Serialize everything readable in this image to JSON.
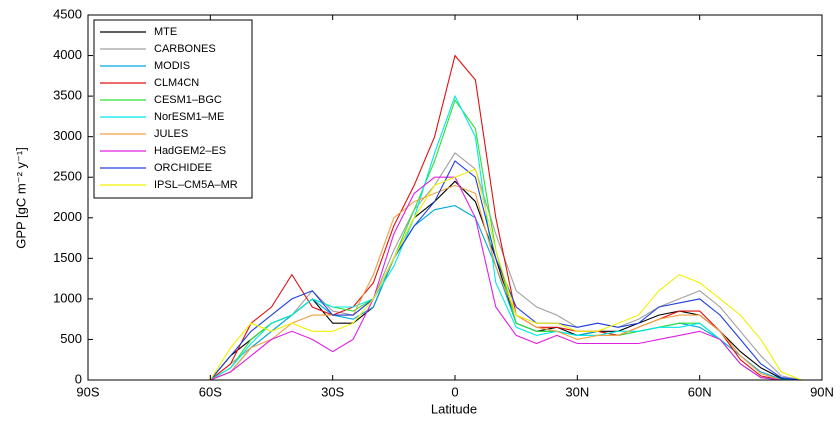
{
  "chart_data": {
    "type": "line",
    "xlabel": "Latitude",
    "ylabel": "GPP [gC m⁻² y⁻¹]",
    "x": [
      -90,
      -85,
      -80,
      -75,
      -70,
      -65,
      -60,
      -55,
      -50,
      -45,
      -40,
      -35,
      -30,
      -25,
      -20,
      -15,
      -10,
      -5,
      0,
      5,
      10,
      15,
      20,
      25,
      30,
      35,
      40,
      45,
      50,
      55,
      60,
      65,
      70,
      75,
      80,
      85,
      90
    ],
    "xlim": [
      -90,
      90
    ],
    "xticks": [
      {
        "value": -90,
        "label": "90S"
      },
      {
        "value": -60,
        "label": "60S"
      },
      {
        "value": -30,
        "label": "30S"
      },
      0,
      {
        "value": 30,
        "label": "30N"
      },
      {
        "value": 60,
        "label": "60N"
      },
      {
        "value": 90,
        "label": "90N"
      }
    ],
    "ylim": [
      0,
      4500
    ],
    "yticks": [
      0,
      500,
      1000,
      1500,
      2000,
      2500,
      3000,
      3500,
      4000,
      4500
    ],
    "legend": "upper left",
    "series": [
      {
        "name": "MTE",
        "color": "#000000",
        "values": [
          0,
          0,
          0,
          0,
          0,
          0,
          0,
          300,
          500,
          700,
          800,
          1000,
          700,
          700,
          900,
          1500,
          2000,
          2200,
          2450,
          2200,
          1500,
          700,
          600,
          650,
          550,
          600,
          600,
          700,
          800,
          850,
          800,
          600,
          350,
          150,
          20,
          0,
          0
        ]
      },
      {
        "name": "CARBONES",
        "color": "#a0a0a0",
        "values": [
          0,
          0,
          0,
          0,
          0,
          0,
          0,
          200,
          400,
          600,
          800,
          1100,
          850,
          800,
          1000,
          1600,
          2100,
          2400,
          2800,
          2600,
          1800,
          1100,
          900,
          800,
          650,
          700,
          650,
          750,
          900,
          1000,
          1100,
          900,
          600,
          300,
          50,
          0,
          0
        ]
      },
      {
        "name": "MODIS",
        "color": "#00a8e0",
        "values": [
          0,
          0,
          0,
          0,
          0,
          0,
          0,
          100,
          400,
          600,
          800,
          1000,
          800,
          750,
          900,
          1500,
          1900,
          2100,
          2150,
          2000,
          1400,
          700,
          600,
          600,
          550,
          600,
          550,
          600,
          650,
          700,
          650,
          500,
          300,
          100,
          10,
          0,
          0
        ]
      },
      {
        "name": "CLM4CN",
        "color": "#e01010",
        "values": [
          0,
          0,
          0,
          0,
          0,
          0,
          0,
          200,
          700,
          900,
          1300,
          900,
          800,
          900,
          1200,
          1900,
          2400,
          3000,
          4000,
          3700,
          2000,
          800,
          650,
          650,
          600,
          600,
          550,
          650,
          750,
          850,
          850,
          600,
          250,
          50,
          0,
          0,
          0
        ]
      },
      {
        "name": "CESM1–BGC",
        "color": "#30e030",
        "values": [
          0,
          0,
          0,
          0,
          0,
          0,
          0,
          150,
          500,
          700,
          800,
          1000,
          900,
          850,
          1000,
          1500,
          2100,
          2700,
          3450,
          3100,
          1600,
          700,
          600,
          600,
          550,
          550,
          550,
          600,
          650,
          700,
          700,
          500,
          200,
          30,
          0,
          0,
          0
        ]
      },
      {
        "name": "NorESM1–ME",
        "color": "#00e8e8",
        "values": [
          0,
          0,
          0,
          0,
          0,
          0,
          0,
          150,
          450,
          700,
          800,
          1000,
          900,
          900,
          1000,
          1400,
          2000,
          2800,
          3500,
          3000,
          1200,
          650,
          550,
          600,
          550,
          550,
          600,
          600,
          650,
          650,
          700,
          500,
          200,
          30,
          0,
          0,
          0
        ]
      },
      {
        "name": "JULES",
        "color": "#f0a040",
        "values": [
          0,
          0,
          0,
          0,
          0,
          0,
          0,
          100,
          400,
          500,
          700,
          800,
          800,
          800,
          1300,
          2000,
          2200,
          2300,
          2400,
          2300,
          1400,
          800,
          650,
          600,
          500,
          550,
          550,
          650,
          750,
          800,
          800,
          600,
          300,
          80,
          0,
          0,
          0
        ]
      },
      {
        "name": "HadGEM2–ES",
        "color": "#e020e0",
        "values": [
          0,
          0,
          0,
          0,
          0,
          0,
          0,
          100,
          300,
          500,
          600,
          500,
          350,
          500,
          1000,
          1800,
          2300,
          2500,
          2500,
          2000,
          900,
          550,
          450,
          550,
          450,
          450,
          450,
          450,
          500,
          550,
          600,
          500,
          200,
          30,
          0,
          0,
          0
        ]
      },
      {
        "name": "ORCHIDEE",
        "color": "#2040e0",
        "values": [
          0,
          0,
          0,
          0,
          0,
          0,
          0,
          300,
          600,
          800,
          1000,
          1100,
          800,
          800,
          1000,
          1500,
          1900,
          2200,
          2700,
          2500,
          1500,
          900,
          700,
          700,
          650,
          700,
          650,
          700,
          900,
          950,
          1000,
          800,
          500,
          200,
          30,
          0,
          0
        ]
      },
      {
        "name": "IPSL–CM5A–MR",
        "color": "#f0f000",
        "values": [
          0,
          0,
          0,
          0,
          0,
          0,
          0,
          400,
          700,
          600,
          700,
          600,
          600,
          700,
          1000,
          1500,
          2000,
          2400,
          2500,
          2600,
          1600,
          800,
          700,
          700,
          600,
          600,
          700,
          800,
          1100,
          1300,
          1200,
          1000,
          800,
          500,
          100,
          0,
          0
        ]
      }
    ]
  }
}
